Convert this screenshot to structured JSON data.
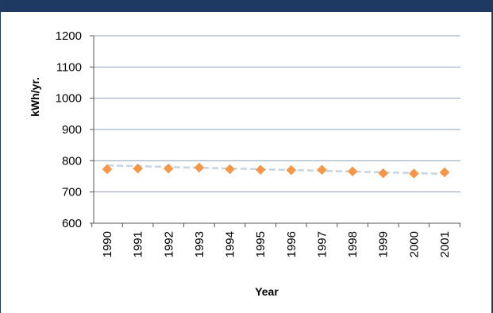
{
  "chart_data": {
    "type": "scatter",
    "title": "",
    "xlabel": "Year",
    "ylabel": "kWh/yr.",
    "x": [
      "1990",
      "1991",
      "1992",
      "1993",
      "1994",
      "1995",
      "1996",
      "1997",
      "1998",
      "1999",
      "2000",
      "2001"
    ],
    "series": [
      {
        "values": [
          773,
          775,
          775,
          778,
          773,
          771,
          770,
          771,
          766,
          760,
          759,
          763
        ],
        "marker": "diamond",
        "color": "#f79646"
      }
    ],
    "trendline": {
      "style": "dashed",
      "color": "#c5d4e3",
      "start": 785,
      "end": 758
    },
    "ylim": [
      600,
      1200
    ],
    "yticks": [
      600,
      700,
      800,
      900,
      1000,
      1100,
      1200
    ],
    "grid": true,
    "legend": "none"
  },
  "colors": {
    "frame": "#1f3b64",
    "grid": "#8fa3b8",
    "axis": "#555555"
  }
}
